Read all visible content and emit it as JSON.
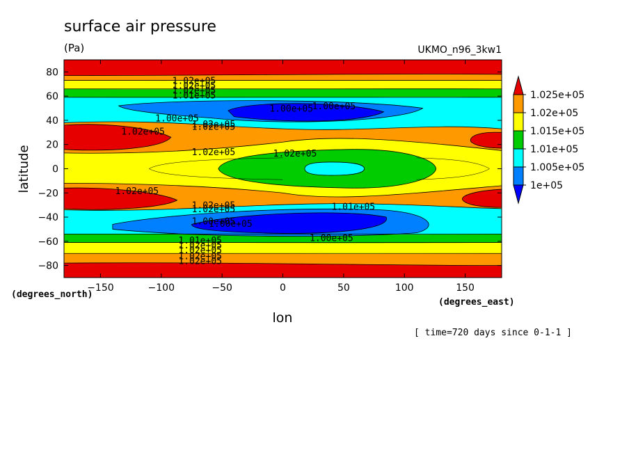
{
  "chart_data": {
    "type": "heatmap",
    "title": "surface air pressure",
    "subtitle": "(Pa)",
    "dataset_label": "UKMO_n96_3kw1",
    "xlabel": "lon",
    "ylabel": "latitude",
    "x_units": "(degrees_east)",
    "y_units": "(degrees_north)",
    "footnote": "[ time=720 days since 0-1-1 ]",
    "xlim": [
      -180,
      180
    ],
    "ylim": [
      -90,
      90
    ],
    "x_ticks": [
      -150,
      -100,
      -50,
      0,
      50,
      100,
      150
    ],
    "y_ticks": [
      -80,
      -60,
      -40,
      -20,
      0,
      20,
      40,
      60,
      80
    ],
    "levels": [
      100000,
      100500,
      101000,
      101500,
      102000,
      102500
    ],
    "colorbar": {
      "labels": [
        "1.025e+05",
        "1.02e+05",
        "1.015e+05",
        "1.01e+05",
        "1.005e+05",
        "1e+05"
      ],
      "colors": [
        "#e60000",
        "#ff9900",
        "#ffff00",
        "#00cc00",
        "#00ffff",
        "#0080ff",
        "#0000ff"
      ]
    },
    "contour_labels": [
      {
        "text": "1.02e+05",
        "lon": -73,
        "lat": 73
      },
      {
        "text": "1.02e+05",
        "lon": -73,
        "lat": 69
      },
      {
        "text": "1.02e+05",
        "lon": -73,
        "lat": 65
      },
      {
        "text": "1.01e+05",
        "lon": -73,
        "lat": 61
      },
      {
        "text": "1.00e+05",
        "lon": 7,
        "lat": 50
      },
      {
        "text": "1.00e+05",
        "lon": 42,
        "lat": 52
      },
      {
        "text": "1.00e+05",
        "lon": -87,
        "lat": 42
      },
      {
        "text": "1.02e+05",
        "lon": -57,
        "lat": 37
      },
      {
        "text": "1.02e+05",
        "lon": -57,
        "lat": 35
      },
      {
        "text": "1.02e+05",
        "lon": -115,
        "lat": 31
      },
      {
        "text": "1.02e+05",
        "lon": -57,
        "lat": 14
      },
      {
        "text": "1.02e+05",
        "lon": 10,
        "lat": 13
      },
      {
        "text": "1.02e+05",
        "lon": -120,
        "lat": -18
      },
      {
        "text": "1.02e+05",
        "lon": -57,
        "lat": -30
      },
      {
        "text": "1.02e+05",
        "lon": -57,
        "lat": -33
      },
      {
        "text": "1.01e+05",
        "lon": 58,
        "lat": -31
      },
      {
        "text": "1.00e+05",
        "lon": -57,
        "lat": -43
      },
      {
        "text": "1.00e+05",
        "lon": -43,
        "lat": -45
      },
      {
        "text": "1.00e+05",
        "lon": 40,
        "lat": -57
      },
      {
        "text": "1.01e+05",
        "lon": -68,
        "lat": -59
      },
      {
        "text": "1.02e+05",
        "lon": -68,
        "lat": -63
      },
      {
        "text": "1.02e+05",
        "lon": -68,
        "lat": -67
      },
      {
        "text": "1.02e+05",
        "lon": -68,
        "lat": -72
      },
      {
        "text": "1.02e+05",
        "lon": -68,
        "lat": -76
      }
    ],
    "grid": false,
    "legend_position": "right"
  }
}
